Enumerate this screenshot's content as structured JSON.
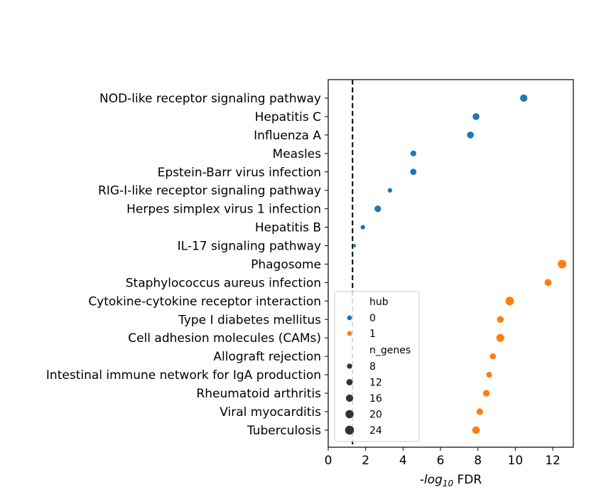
{
  "chart_data": {
    "type": "scatter",
    "xlabel_prefix": "-log",
    "xlabel_sub": "10",
    "xlabel_suffix": " FDR",
    "xlim": [
      0,
      13.1
    ],
    "xticks": [
      0,
      2,
      4,
      6,
      8,
      10,
      12
    ],
    "threshold_x": 1.3,
    "categories": [
      "NOD-like receptor signaling pathway",
      "Hepatitis C",
      "Influenza A",
      "Measles",
      "Epstein-Barr virus infection",
      "RIG-I-like receptor signaling pathway",
      "Herpes simplex virus 1 infection",
      "Hepatitis B",
      "IL-17 signaling pathway",
      "Phagosome",
      "Staphylococcus aureus infection",
      "Cytokine-cytokine receptor interaction",
      "Type I diabetes mellitus",
      "Cell adhesion molecules (CAMs)",
      "Allograft rejection",
      "Intestinal immune network for IgA production",
      "Rheumatoid arthritis",
      "Viral myocarditis",
      "Tuberculosis"
    ],
    "points": [
      {
        "x": 10.45,
        "hub": 0,
        "n_genes": 16
      },
      {
        "x": 7.9,
        "hub": 0,
        "n_genes": 14
      },
      {
        "x": 7.6,
        "hub": 0,
        "n_genes": 14
      },
      {
        "x": 4.55,
        "hub": 0,
        "n_genes": 10
      },
      {
        "x": 4.55,
        "hub": 0,
        "n_genes": 12
      },
      {
        "x": 3.3,
        "hub": 0,
        "n_genes": 6
      },
      {
        "x": 2.65,
        "hub": 0,
        "n_genes": 13
      },
      {
        "x": 1.85,
        "hub": 0,
        "n_genes": 6
      },
      {
        "x": 1.4,
        "hub": 0,
        "n_genes": 3
      },
      {
        "x": 12.5,
        "hub": 1,
        "n_genes": 22
      },
      {
        "x": 11.75,
        "hub": 1,
        "n_genes": 15
      },
      {
        "x": 9.7,
        "hub": 1,
        "n_genes": 22
      },
      {
        "x": 9.2,
        "hub": 1,
        "n_genes": 14
      },
      {
        "x": 9.2,
        "hub": 1,
        "n_genes": 19
      },
      {
        "x": 8.8,
        "hub": 1,
        "n_genes": 11
      },
      {
        "x": 8.6,
        "hub": 1,
        "n_genes": 10
      },
      {
        "x": 8.45,
        "hub": 1,
        "n_genes": 13
      },
      {
        "x": 8.1,
        "hub": 1,
        "n_genes": 13
      },
      {
        "x": 7.9,
        "hub": 1,
        "n_genes": 17
      }
    ],
    "colors": {
      "0": "#1f77b4",
      "1": "#ff7f0e"
    },
    "legend": {
      "hub_title": "hub",
      "hub_values": [
        "0",
        "1"
      ],
      "size_title": "n_genes",
      "size_values": [
        8,
        12,
        16,
        20,
        24
      ]
    }
  }
}
